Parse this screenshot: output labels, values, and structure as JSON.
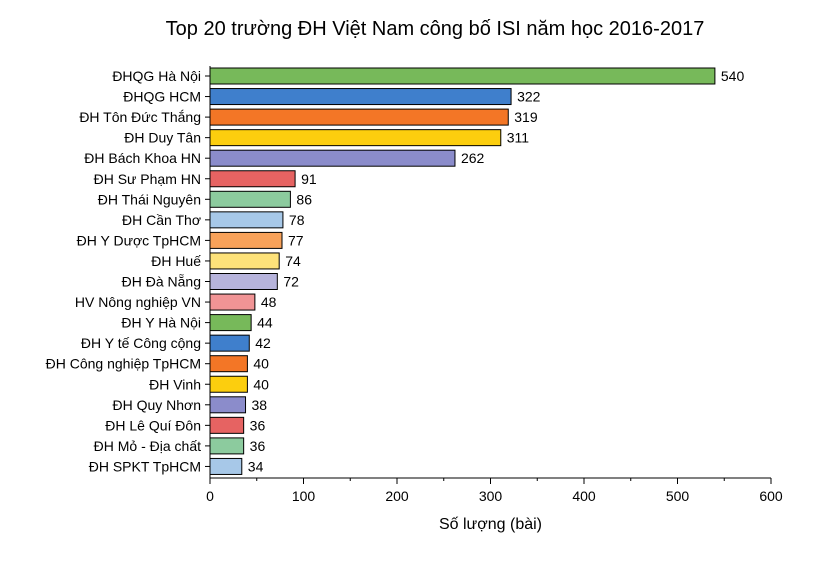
{
  "chart_data": {
    "type": "bar",
    "orientation": "horizontal",
    "title": "Top 20 trường ĐH Việt Nam công bố ISI năm học 2016-2017",
    "xlabel": "Số lượng (bài)",
    "ylabel": "",
    "xlim": [
      0,
      600
    ],
    "x_ticks": [
      "0",
      "100",
      "200",
      "300",
      "400",
      "500",
      "600"
    ],
    "grid": false,
    "categories": [
      "ĐHQG Hà Nội",
      "ĐHQG HCM",
      "ĐH Tôn Đức Thắng",
      "ĐH Duy Tân",
      "ĐH Bách Khoa HN",
      "ĐH Sư Phạm HN",
      "ĐH Thái Nguyên",
      "ĐH Cần Thơ",
      "ĐH Y Dược TpHCM",
      "ĐH Huế",
      "ĐH Đà Nẵng",
      "HV Nông nghiệp VN",
      "ĐH Y Hà Nội",
      "ĐH Y tế Công cộng",
      "ĐH Công nghiệp TpHCM",
      "ĐH Vinh",
      "ĐH Quy Nhơn",
      "ĐH Lê Quí Đôn",
      "ĐH Mỏ - Địa chất",
      "ĐH SPKT TpHCM"
    ],
    "values": [
      540,
      322,
      319,
      311,
      262,
      91,
      86,
      78,
      77,
      74,
      72,
      48,
      44,
      42,
      40,
      40,
      38,
      36,
      36,
      34
    ],
    "colors": [
      "#77b95a",
      "#3f7fcc",
      "#f37626",
      "#fcce0e",
      "#8b8ccb",
      "#e66362",
      "#8ccb9e",
      "#a7c8e8",
      "#f8a25a",
      "#fde27a",
      "#b7b4dc",
      "#f19495",
      "#77b95a",
      "#3f7fcc",
      "#f37626",
      "#fcce0e",
      "#8b8ccb",
      "#e66362",
      "#8ccb9e",
      "#a7c8e8"
    ]
  }
}
